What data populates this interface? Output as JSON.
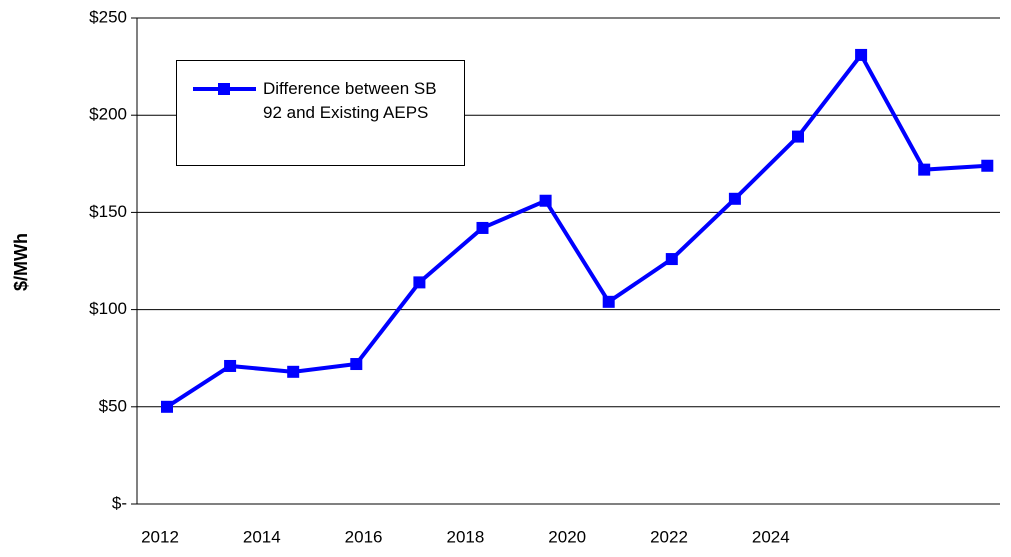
{
  "chart_data": {
    "type": "line",
    "y_label": "$/MWh",
    "categories": [
      "2012",
      "2013",
      "2014",
      "2015",
      "2016",
      "2017",
      "2018",
      "2019",
      "2020",
      "2021",
      "2022",
      "2023",
      "2024",
      "2025"
    ],
    "series": [
      {
        "name": "Difference between SB 92 and Existing AEPS",
        "color": "#0000ff",
        "values": [
          50,
          71,
          68,
          72,
          114,
          142,
          156,
          104,
          126,
          157,
          189,
          231,
          172,
          174
        ]
      }
    ],
    "ylim": [
      0,
      250
    ],
    "yticks": [
      {
        "value": 0,
        "label": "$-"
      },
      {
        "value": 50,
        "label": "$50"
      },
      {
        "value": 100,
        "label": "$100"
      },
      {
        "value": 150,
        "label": "$150"
      },
      {
        "value": 200,
        "label": "$200"
      },
      {
        "value": 250,
        "label": "$250"
      }
    ],
    "grid": true,
    "legend": "upper left"
  }
}
